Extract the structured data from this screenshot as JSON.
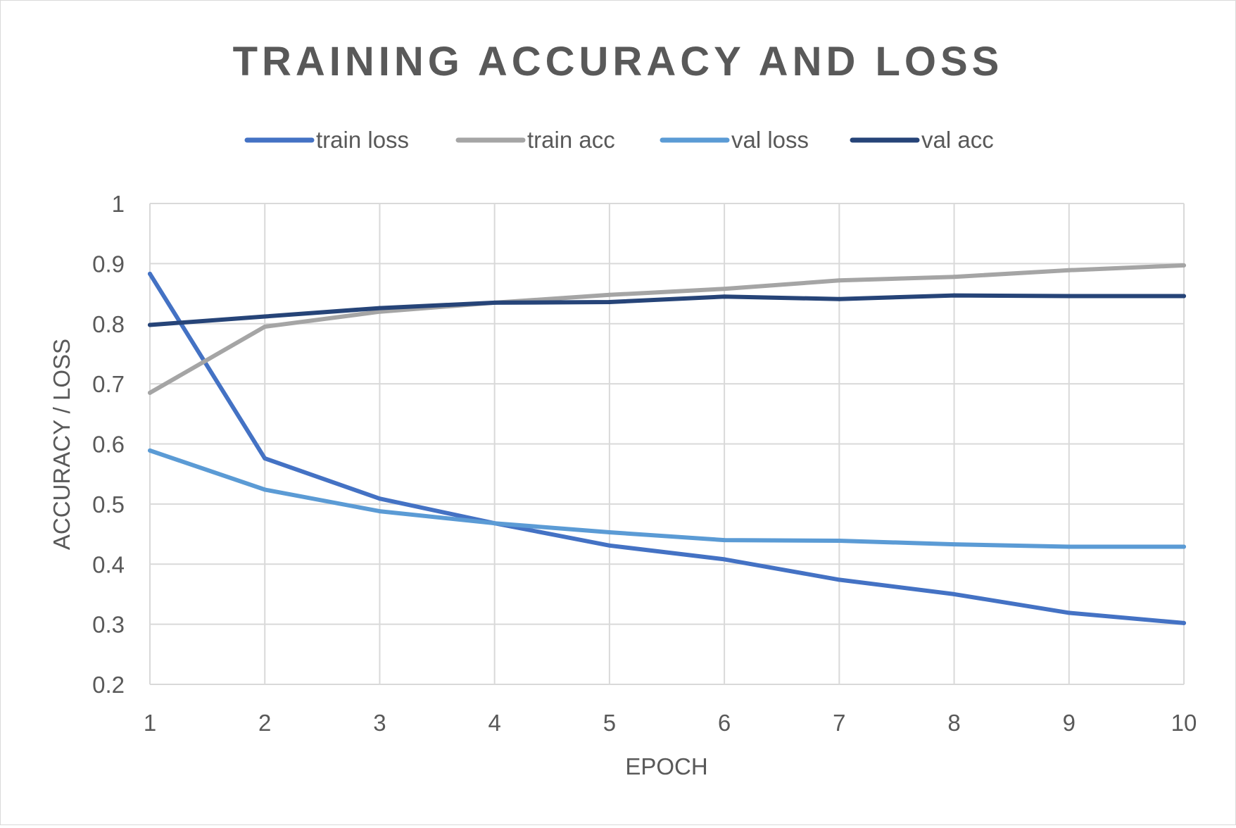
{
  "chart_data": {
    "type": "line",
    "title": "TRAINING ACCURACY AND LOSS",
    "xlabel": "EPOCH",
    "ylabel": "ACCURACY / LOSS",
    "x": [
      1,
      2,
      3,
      4,
      5,
      6,
      7,
      8,
      9,
      10
    ],
    "x_ticks": [
      "1",
      "2",
      "3",
      "4",
      "5",
      "6",
      "7",
      "8",
      "9",
      "10"
    ],
    "ylim": [
      0.2,
      1.0
    ],
    "y_ticks": [
      "0.2",
      "0.3",
      "0.4",
      "0.5",
      "0.6",
      "0.7",
      "0.8",
      "0.9",
      "1"
    ],
    "grid": true,
    "legend_position": "top",
    "series": [
      {
        "name": "train loss",
        "color": "#4472c4",
        "values": [
          0.883,
          0.576,
          0.509,
          0.468,
          0.431,
          0.408,
          0.374,
          0.35,
          0.319,
          0.302
        ]
      },
      {
        "name": "train acc",
        "color": "#a5a5a5",
        "values": [
          0.685,
          0.795,
          0.82,
          0.835,
          0.848,
          0.858,
          0.872,
          0.878,
          0.889,
          0.897
        ]
      },
      {
        "name": "val loss",
        "color": "#5b9bd5",
        "values": [
          0.589,
          0.524,
          0.488,
          0.468,
          0.453,
          0.44,
          0.439,
          0.433,
          0.429,
          0.429
        ]
      },
      {
        "name": "val acc",
        "color": "#264478",
        "values": [
          0.798,
          0.812,
          0.826,
          0.835,
          0.836,
          0.845,
          0.841,
          0.847,
          0.846,
          0.846
        ]
      }
    ]
  }
}
